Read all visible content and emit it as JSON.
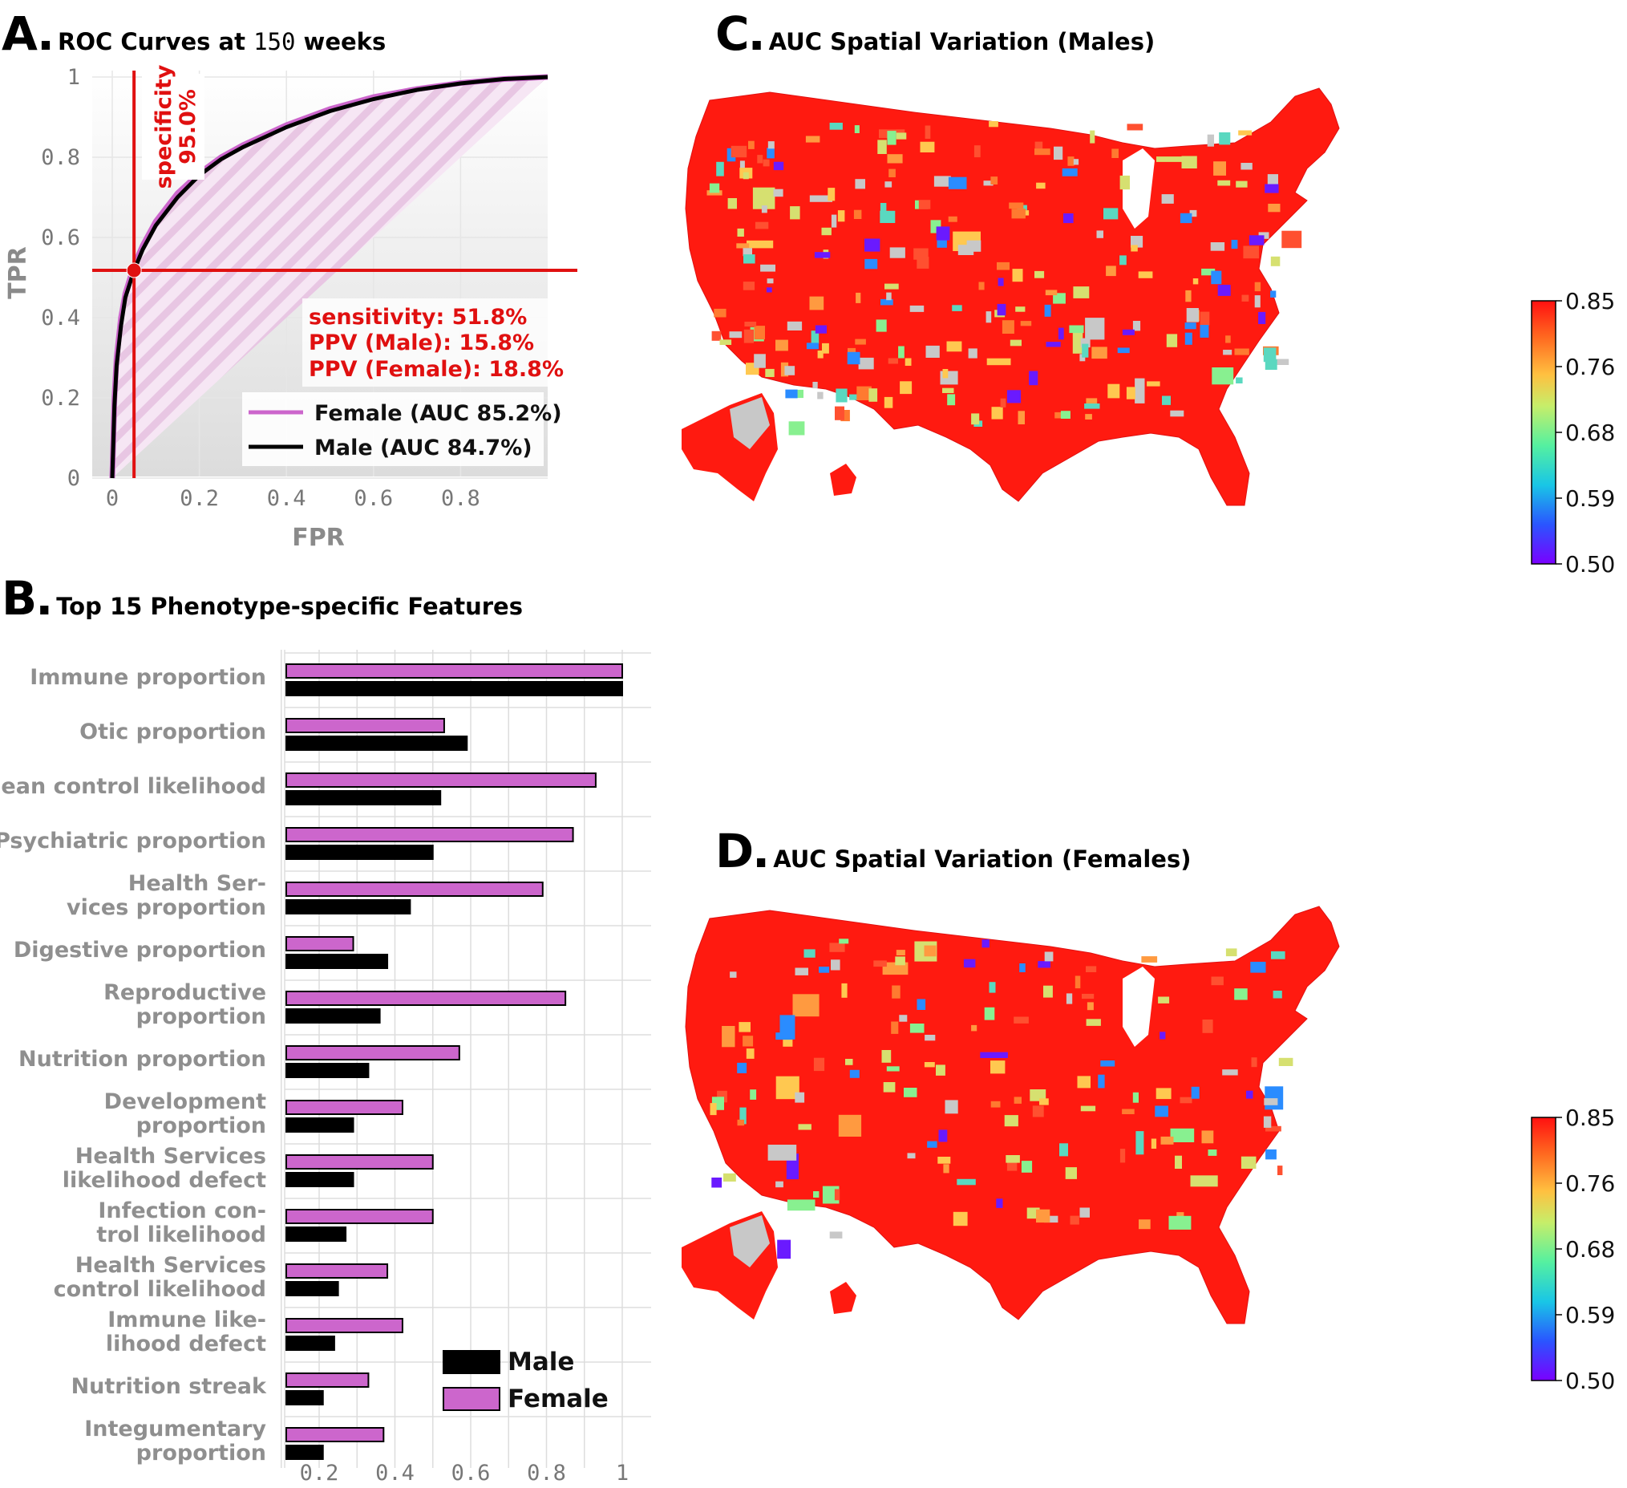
{
  "panels": {
    "A": {
      "letter": "A.",
      "title_pre": "ROC Curves at ",
      "title_num": "150",
      "title_post": " weeks"
    },
    "B": {
      "letter": "B.",
      "title": "Top 15 Phenotype-specific Features"
    },
    "C": {
      "letter": "C.",
      "title": "AUC Spatial Variation (Males)"
    },
    "D": {
      "letter": "D.",
      "title": "AUC Spatial Variation (Females)"
    }
  },
  "chart_data": [
    {
      "type": "line",
      "panel": "A",
      "title": "ROC Curves at 150 weeks",
      "xlabel": "FPR",
      "ylabel": "TPR",
      "xlim": [
        0,
        1
      ],
      "ylim": [
        0,
        1
      ],
      "xticks": [
        "0",
        "0.2",
        "0.4",
        "0.6",
        "0.8"
      ],
      "yticks": [
        "0",
        "0.2",
        "0.4",
        "0.6",
        "0.8",
        "1"
      ],
      "grid": true,
      "legend_position": "bottom-right",
      "series": [
        {
          "name": "Female (AUC 85.2%)",
          "color": "#cc66cc",
          "x": [
            0,
            0.005,
            0.01,
            0.02,
            0.03,
            0.05,
            0.07,
            0.1,
            0.15,
            0.2,
            0.25,
            0.3,
            0.4,
            0.5,
            0.6,
            0.7,
            0.8,
            0.9,
            1.0
          ],
          "y": [
            0,
            0.2,
            0.3,
            0.4,
            0.46,
            0.53,
            0.58,
            0.64,
            0.71,
            0.76,
            0.8,
            0.83,
            0.88,
            0.92,
            0.95,
            0.97,
            0.985,
            0.995,
            1.0
          ]
        },
        {
          "name": "Male (AUC 84.7%)",
          "color": "#000000",
          "x": [
            0,
            0.005,
            0.01,
            0.02,
            0.03,
            0.05,
            0.07,
            0.1,
            0.15,
            0.2,
            0.25,
            0.3,
            0.4,
            0.5,
            0.6,
            0.7,
            0.8,
            0.9,
            1.0
          ],
          "y": [
            0,
            0.18,
            0.28,
            0.38,
            0.45,
            0.518,
            0.57,
            0.63,
            0.7,
            0.755,
            0.795,
            0.825,
            0.875,
            0.915,
            0.945,
            0.968,
            0.984,
            0.995,
            1.0
          ]
        }
      ],
      "operating_point": {
        "fpr": 0.05,
        "tpr": 0.518
      },
      "annotations": {
        "specificity_label": "specificity",
        "specificity_value": "95.0%",
        "sensitivity": "sensitivity: 51.8%",
        "ppv_male": "PPV (Male): 15.8%",
        "ppv_female": "PPV (Female): 18.8%"
      }
    },
    {
      "type": "bar",
      "panel": "B",
      "title": "Top 15 Phenotype-specific Features",
      "orientation": "horizontal",
      "categories": [
        [
          "Immune proportion"
        ],
        [
          "Otic proportion"
        ],
        [
          "Mean control likelihood"
        ],
        [
          "Psychiatric proportion"
        ],
        [
          "Health Ser-",
          "vices proportion"
        ],
        [
          "Digestive proportion"
        ],
        [
          "Reproductive",
          "proportion"
        ],
        [
          "Nutrition proportion"
        ],
        [
          "Development",
          "proportion"
        ],
        [
          "Health Services",
          "likelihood defect"
        ],
        [
          "Infection con-",
          "trol likelihood"
        ],
        [
          "Health Services",
          "control likelihood"
        ],
        [
          "Immune like-",
          "lihood defect"
        ],
        [
          "Nutrition streak"
        ],
        [
          "Integumentary",
          "proportion"
        ]
      ],
      "xlim": [
        0.1,
        1.08
      ],
      "xticks": [
        "0.2",
        "0.4",
        "0.6",
        "0.8",
        "1"
      ],
      "legend_position": "bottom-right",
      "series": [
        {
          "name": "Female",
          "color": "#cc66cc",
          "values": [
            1.0,
            0.53,
            0.93,
            0.87,
            0.79,
            0.29,
            0.85,
            0.57,
            0.42,
            0.5,
            0.5,
            0.38,
            0.42,
            0.33,
            0.37
          ]
        },
        {
          "name": "Male",
          "color": "#000000",
          "values": [
            1.0,
            0.59,
            0.52,
            0.5,
            0.44,
            0.38,
            0.36,
            0.33,
            0.29,
            0.29,
            0.27,
            0.25,
            0.24,
            0.21,
            0.21
          ]
        }
      ]
    },
    {
      "type": "heatmap",
      "panel": "C",
      "title": "AUC Spatial Variation (Males)",
      "colorbar": {
        "min": 0.5,
        "max": 0.85,
        "ticks": [
          "0.85",
          "0.76",
          "0.68",
          "0.59",
          "0.50"
        ]
      }
    },
    {
      "type": "heatmap",
      "panel": "D",
      "title": "AUC Spatial Variation (Females)",
      "colorbar": {
        "min": 0.5,
        "max": 0.85,
        "ticks": [
          "0.85",
          "0.76",
          "0.68",
          "0.59",
          "0.50"
        ]
      }
    }
  ]
}
